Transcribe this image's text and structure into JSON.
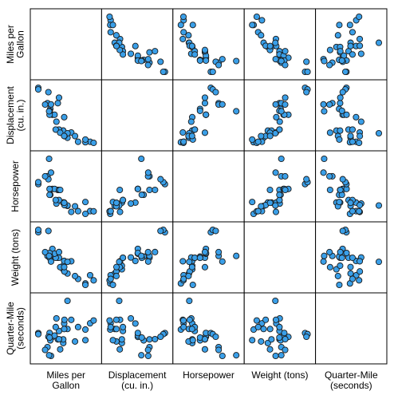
{
  "chart_data": {
    "type": "scatter",
    "variables": [
      {
        "key": "mpg",
        "label_lines": [
          "Miles per",
          "Gallon"
        ]
      },
      {
        "key": "disp",
        "label_lines": [
          "Displacement",
          "(cu. in.)"
        ]
      },
      {
        "key": "hp",
        "label_lines": [
          "Horsepower"
        ]
      },
      {
        "key": "wt",
        "label_lines": [
          "Weight (tons)"
        ]
      },
      {
        "key": "qsec",
        "label_lines": [
          "Quarter-Mile",
          "(seconds)"
        ]
      }
    ],
    "ranges": {
      "mpg": [
        10.4,
        33.9
      ],
      "disp": [
        71.1,
        472.0
      ],
      "hp": [
        52,
        335
      ],
      "wt": [
        1.513,
        5.424
      ],
      "qsec": [
        14.5,
        22.9
      ]
    },
    "records": [
      {
        "mpg": 21.0,
        "disp": 160.0,
        "hp": 110,
        "wt": 2.62,
        "qsec": 16.46
      },
      {
        "mpg": 21.0,
        "disp": 160.0,
        "hp": 110,
        "wt": 2.875,
        "qsec": 17.02
      },
      {
        "mpg": 22.8,
        "disp": 108.0,
        "hp": 93,
        "wt": 2.32,
        "qsec": 18.61
      },
      {
        "mpg": 21.4,
        "disp": 258.0,
        "hp": 110,
        "wt": 3.215,
        "qsec": 19.44
      },
      {
        "mpg": 18.7,
        "disp": 360.0,
        "hp": 175,
        "wt": 3.44,
        "qsec": 17.02
      },
      {
        "mpg": 18.1,
        "disp": 225.0,
        "hp": 105,
        "wt": 3.46,
        "qsec": 20.22
      },
      {
        "mpg": 14.3,
        "disp": 360.0,
        "hp": 245,
        "wt": 3.57,
        "qsec": 15.84
      },
      {
        "mpg": 24.4,
        "disp": 146.7,
        "hp": 62,
        "wt": 3.19,
        "qsec": 20.0
      },
      {
        "mpg": 22.8,
        "disp": 140.8,
        "hp": 95,
        "wt": 3.15,
        "qsec": 22.9
      },
      {
        "mpg": 19.2,
        "disp": 167.6,
        "hp": 123,
        "wt": 3.44,
        "qsec": 18.3
      },
      {
        "mpg": 17.8,
        "disp": 167.6,
        "hp": 123,
        "wt": 3.44,
        "qsec": 18.9
      },
      {
        "mpg": 16.4,
        "disp": 275.8,
        "hp": 180,
        "wt": 4.07,
        "qsec": 17.4
      },
      {
        "mpg": 17.3,
        "disp": 275.8,
        "hp": 180,
        "wt": 3.73,
        "qsec": 17.6
      },
      {
        "mpg": 15.2,
        "disp": 275.8,
        "hp": 180,
        "wt": 3.78,
        "qsec": 18.0
      },
      {
        "mpg": 10.4,
        "disp": 472.0,
        "hp": 205,
        "wt": 5.25,
        "qsec": 17.98
      },
      {
        "mpg": 10.4,
        "disp": 460.0,
        "hp": 215,
        "wt": 5.424,
        "qsec": 17.82
      },
      {
        "mpg": 14.7,
        "disp": 440.0,
        "hp": 230,
        "wt": 5.345,
        "qsec": 17.42
      },
      {
        "mpg": 32.4,
        "disp": 78.7,
        "hp": 66,
        "wt": 2.2,
        "qsec": 19.47
      },
      {
        "mpg": 30.4,
        "disp": 75.7,
        "hp": 52,
        "wt": 1.615,
        "qsec": 18.52
      },
      {
        "mpg": 33.9,
        "disp": 71.1,
        "hp": 65,
        "wt": 1.835,
        "qsec": 19.9
      },
      {
        "mpg": 21.5,
        "disp": 120.1,
        "hp": 97,
        "wt": 2.465,
        "qsec": 20.01
      },
      {
        "mpg": 15.5,
        "disp": 318.0,
        "hp": 150,
        "wt": 3.52,
        "qsec": 16.87
      },
      {
        "mpg": 15.2,
        "disp": 304.0,
        "hp": 150,
        "wt": 3.435,
        "qsec": 17.3
      },
      {
        "mpg": 13.3,
        "disp": 350.0,
        "hp": 245,
        "wt": 3.84,
        "qsec": 15.41
      },
      {
        "mpg": 19.2,
        "disp": 400.0,
        "hp": 175,
        "wt": 3.845,
        "qsec": 17.05
      },
      {
        "mpg": 27.3,
        "disp": 79.0,
        "hp": 66,
        "wt": 1.935,
        "qsec": 18.9
      },
      {
        "mpg": 26.0,
        "disp": 120.3,
        "hp": 91,
        "wt": 2.14,
        "qsec": 16.7
      },
      {
        "mpg": 30.4,
        "disp": 95.1,
        "hp": 113,
        "wt": 1.513,
        "qsec": 16.9
      },
      {
        "mpg": 15.8,
        "disp": 351.0,
        "hp": 264,
        "wt": 3.17,
        "qsec": 14.5
      },
      {
        "mpg": 19.7,
        "disp": 145.0,
        "hp": 175,
        "wt": 2.77,
        "qsec": 15.5
      },
      {
        "mpg": 15.0,
        "disp": 301.0,
        "hp": 335,
        "wt": 3.57,
        "qsec": 14.6
      },
      {
        "mpg": 21.4,
        "disp": 121.0,
        "hp": 109,
        "wt": 2.78,
        "qsec": 18.6
      }
    ],
    "point_color": "#3a9fe8",
    "point_edge_color": "#1a1a1a",
    "grid": false,
    "legend": "none"
  }
}
